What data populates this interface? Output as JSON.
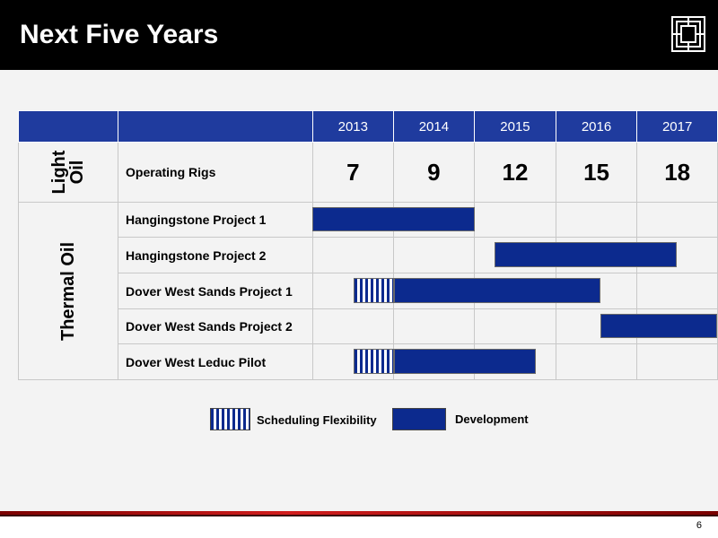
{
  "header": {
    "title": "Next Five Years",
    "logo_icon": "company-logo-icon"
  },
  "schedule": {
    "years": [
      "2013",
      "2014",
      "2015",
      "2016",
      "2017"
    ],
    "categories": [
      {
        "name": "Light Oil",
        "rows": [
          "Operating Rigs"
        ]
      },
      {
        "name": "Thermal Oil",
        "rows": [
          "Hangingstone Project 1",
          "Hangingstone Project 2",
          "Dover West Sands Project 1",
          "Dover West Sands Project 2",
          "Dover West Leduc Pilot"
        ]
      }
    ],
    "light_oil_label_line1": "Light",
    "light_oil_label_line2": "Oil",
    "thermal_oil_label": "Thermal Oil",
    "operating_rigs": {
      "label": "Operating Rigs",
      "values": [
        "7",
        "9",
        "12",
        "15",
        "18"
      ]
    },
    "projects": [
      {
        "label": "Hangingstone Project 1",
        "flex": null,
        "dev": [
          2013.0,
          2015.0
        ]
      },
      {
        "label": "Hangingstone Project 2",
        "flex": null,
        "dev": [
          2015.25,
          2017.5
        ]
      },
      {
        "label": "Dover West Sands Project 1",
        "flex": [
          2013.5,
          2014.0
        ],
        "dev": [
          2014.0,
          2016.55
        ]
      },
      {
        "label": "Dover West Sands Project 2",
        "flex": null,
        "dev": [
          2016.55,
          2018.0
        ]
      },
      {
        "label": "Dover West Leduc Pilot",
        "flex": [
          2013.5,
          2014.0
        ],
        "dev": [
          2014.0,
          2015.75
        ]
      }
    ]
  },
  "legend": {
    "flex_label": "Scheduling Flexibility",
    "dev_label": "Development"
  },
  "footer": {
    "page_number": "6"
  },
  "colors": {
    "header_bg": "#000000",
    "table_header_bg": "#1f3b9e",
    "bar_blue": "#0c2a8e",
    "footer_red": "#d21d1d"
  }
}
